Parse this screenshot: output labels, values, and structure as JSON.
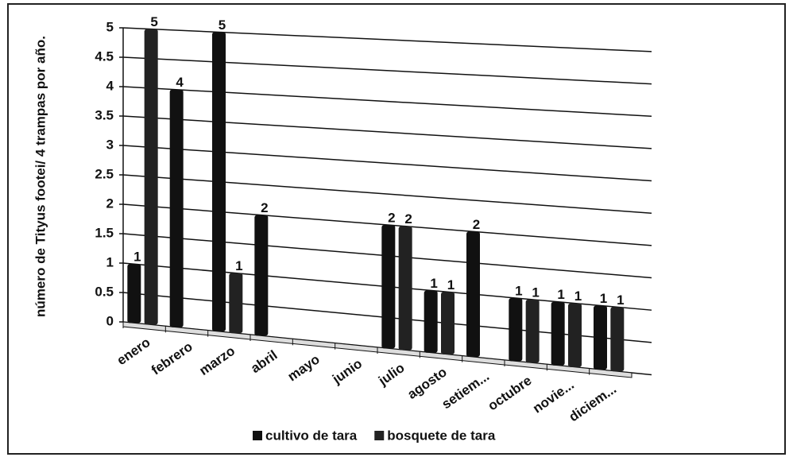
{
  "chart_data": {
    "type": "bar3d",
    "y_label": "número de Tityus footei/ 4 trampas por año.",
    "categories": [
      "enero",
      "febrero",
      "marzo",
      "abril",
      "mayo",
      "junio",
      "julio",
      "agosto",
      "setiem...",
      "octubre",
      "novie...",
      "diciem..."
    ],
    "series": [
      {
        "name": "cultivo de tara",
        "color": "#111111",
        "values": [
          1,
          4,
          5,
          2,
          0,
          0,
          2,
          1,
          2,
          1,
          1,
          1
        ]
      },
      {
        "name": "bosquete de tara",
        "color": "#222222",
        "values": [
          5,
          0,
          1,
          0,
          0,
          0,
          2,
          1,
          0,
          1,
          1,
          1
        ]
      }
    ],
    "ylim": [
      0,
      5
    ],
    "yticks": [
      0,
      0.5,
      1,
      1.5,
      2,
      2.5,
      3,
      3.5,
      4,
      4.5,
      5
    ],
    "grid": true,
    "legend": "bottom"
  }
}
